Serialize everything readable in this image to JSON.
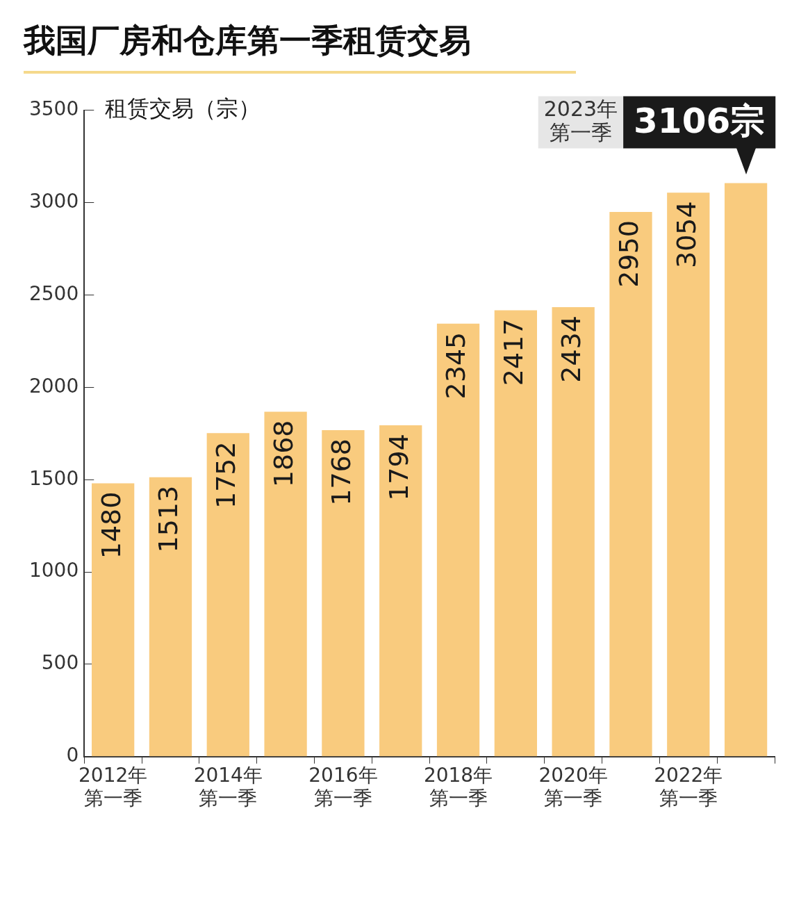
{
  "chart_data": {
    "type": "bar",
    "title": "我国厂房和仓库第一季租赁交易",
    "ylabel": "租赁交易（宗）",
    "categories": [
      "2012年第一季",
      null,
      "2014年第一季",
      null,
      "2016年第一季",
      null,
      "2018年第一季",
      null,
      "2020年第一季",
      null,
      "2022年第一季",
      null
    ],
    "values": [
      1480,
      1513,
      1752,
      1868,
      1768,
      1794,
      2345,
      2417,
      2434,
      2950,
      3054,
      3106
    ],
    "value_labels": [
      "1480",
      "1513",
      "1752",
      "1868",
      "1768",
      "1794",
      "2345",
      "2417",
      "2434",
      "2950",
      "3054",
      "3106宗"
    ],
    "color": "#f9cb7e",
    "ylim": [
      0,
      3500
    ],
    "yticks": [
      0,
      500,
      1000,
      1500,
      2000,
      2500,
      3000,
      3500
    ],
    "annotations": [
      "2023年第一季"
    ],
    "grid": false,
    "legend": false
  }
}
